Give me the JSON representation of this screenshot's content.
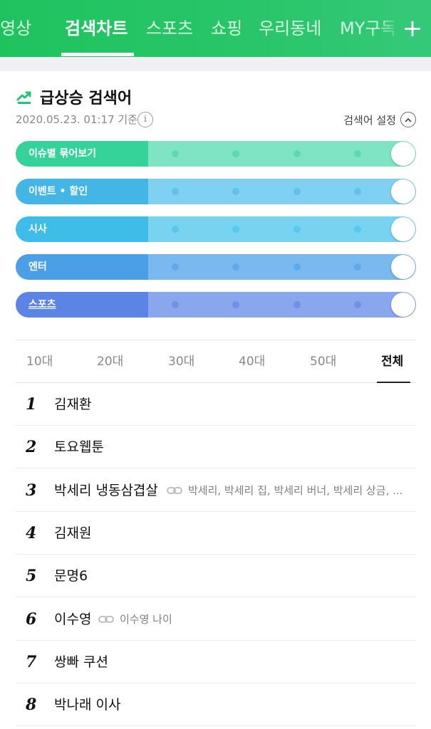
{
  "nav": {
    "tabs": [
      "동영상",
      "검색차트",
      "스포츠",
      "쇼핑",
      "우리동네",
      "MY구독"
    ],
    "active_index": 1,
    "add_symbol": "+",
    "color": "#1fc35e"
  },
  "rising": {
    "title": "급상승 검색어",
    "timestamp": "2020.05.23. 01:17 기준",
    "info_symbol": "i",
    "settings_label": "검색어 설정"
  },
  "toggles": [
    {
      "label": "이슈별 묶어보기",
      "color": "#35d29a",
      "light": "#7ee4c3",
      "dot": "#5fd8ad"
    },
    {
      "label": "이벤트 • 할인",
      "color": "#43b6e6",
      "light": "#7fd0f1",
      "dot": "#5ec2ea"
    },
    {
      "label": "시사",
      "color": "#3dbde7",
      "light": "#78d3f0",
      "dot": "#58c8eb"
    },
    {
      "label": "엔터",
      "color": "#4a9fe6",
      "light": "#7ab8f0",
      "dot": "#5faaea"
    },
    {
      "label": "스포츠",
      "color": "#5b84e4",
      "light": "#8aa7ee",
      "dot": "#6d92e8"
    }
  ],
  "age_tabs": [
    "10대",
    "20대",
    "30대",
    "40대",
    "50대",
    "전체"
  ],
  "age_active_index": 5,
  "ranking": [
    {
      "rank": "1",
      "keyword": "김재환",
      "related": ""
    },
    {
      "rank": "2",
      "keyword": "토요웹툰",
      "related": ""
    },
    {
      "rank": "3",
      "keyword": "박세리 냉동삼겹살",
      "related": "박세리, 박세리 집, 박세리 버너, 박세리 상금, ..."
    },
    {
      "rank": "4",
      "keyword": "김재원",
      "related": ""
    },
    {
      "rank": "5",
      "keyword": "문명6",
      "related": ""
    },
    {
      "rank": "6",
      "keyword": "이수영",
      "related": "이수영 나이"
    },
    {
      "rank": "7",
      "keyword": "쌍빠 쿠션",
      "related": ""
    },
    {
      "rank": "8",
      "keyword": "박나래 이사",
      "related": ""
    }
  ]
}
